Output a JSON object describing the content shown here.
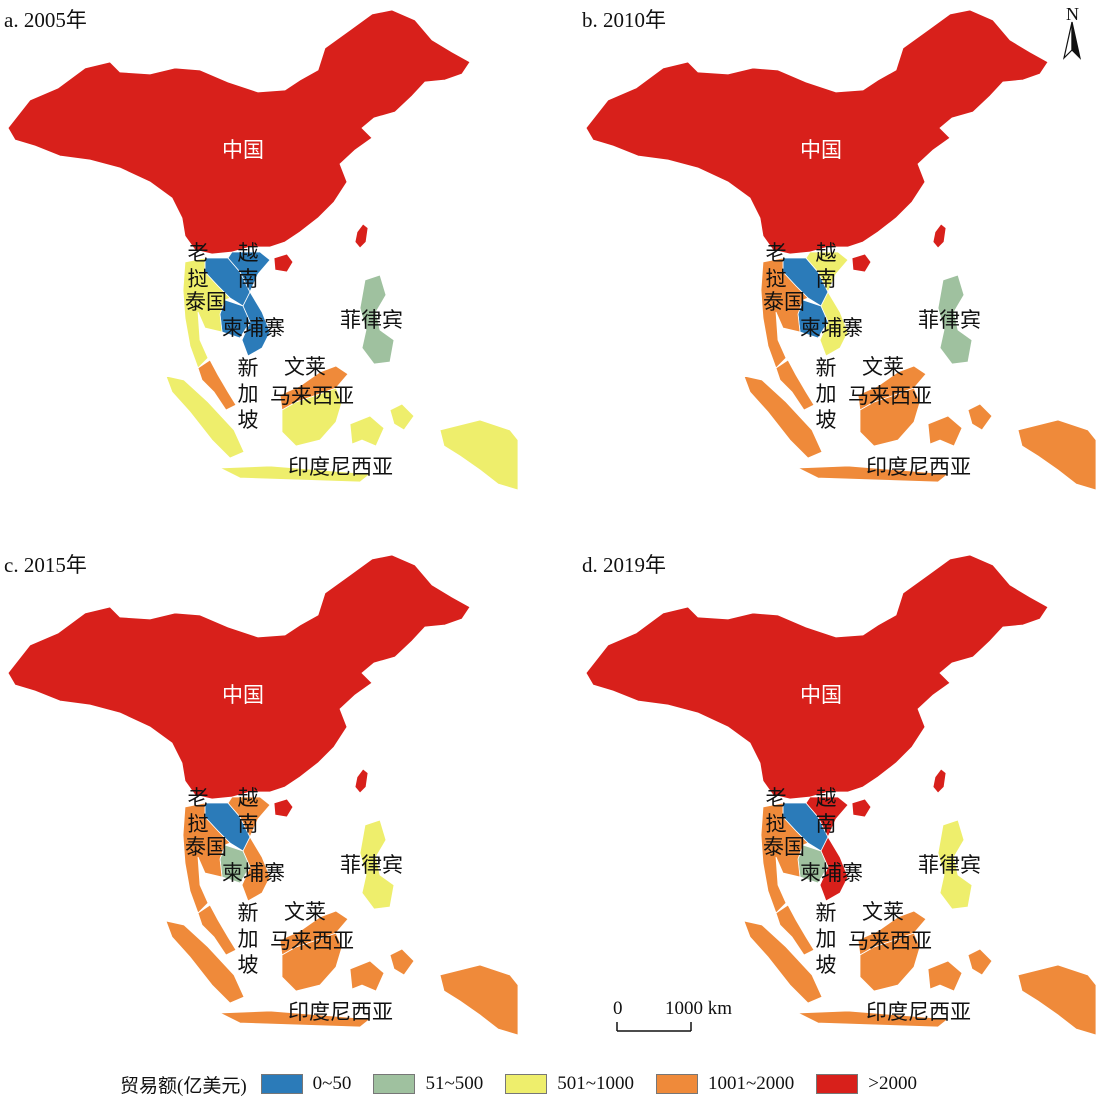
{
  "colors": {
    "c0": "#2b7bb9",
    "c1": "#9fc19f",
    "c2": "#eeee6c",
    "c3": "#ef8a3a",
    "c4": "#d8201b"
  },
  "labels": {
    "china": "中国",
    "laos": "老挝",
    "vietnam": "越南",
    "thailand": "泰国",
    "cambodia": "柬埔寨",
    "philippines": "菲律宾",
    "singapore": "新加坡",
    "brunei": "文莱",
    "malaysia": "马来西亚",
    "indonesia": "印度尼西亚"
  },
  "panels": [
    {
      "title": "a. 2005年",
      "classes": {
        "china": "c4",
        "taiwan": "c4",
        "hainan": "c4",
        "laos": "c0",
        "vietnam": "c0",
        "cambodia": "c0",
        "thailand": "c2",
        "philippines": "c1",
        "malay_pen": "c3",
        "borneo_my": "c3",
        "borneo_id": "c2",
        "indonesia": "c2"
      }
    },
    {
      "title": "b. 2010年",
      "classes": {
        "china": "c4",
        "taiwan": "c4",
        "hainan": "c4",
        "laos": "c0",
        "vietnam": "c2",
        "cambodia": "c0",
        "thailand": "c3",
        "philippines": "c1",
        "malay_pen": "c3",
        "borneo_my": "c3",
        "borneo_id": "c3",
        "indonesia": "c3"
      }
    },
    {
      "title": "c. 2015年",
      "classes": {
        "china": "c4",
        "taiwan": "c4",
        "hainan": "c4",
        "laos": "c0",
        "vietnam": "c3",
        "cambodia": "c1",
        "thailand": "c3",
        "philippines": "c2",
        "malay_pen": "c3",
        "borneo_my": "c3",
        "borneo_id": "c3",
        "indonesia": "c3"
      }
    },
    {
      "title": "d. 2019年",
      "classes": {
        "china": "c4",
        "taiwan": "c4",
        "hainan": "c4",
        "laos": "c0",
        "vietnam": "c4",
        "cambodia": "c1",
        "thailand": "c3",
        "philippines": "c2",
        "malay_pen": "c3",
        "borneo_my": "c3",
        "borneo_id": "c3",
        "indonesia": "c3"
      }
    }
  ],
  "north": "N",
  "scale": {
    "zero": "0",
    "dist": "1000 km"
  },
  "legend": {
    "title": "贸易额(亿美元)",
    "items": [
      {
        "label": "0~50",
        "cls": "c0"
      },
      {
        "label": "51~500",
        "cls": "c1"
      },
      {
        "label": "501~1000",
        "cls": "c2"
      },
      {
        "label": "1001~2000",
        "cls": "c3"
      },
      {
        "label": ">2000",
        "cls": "c4"
      }
    ]
  }
}
